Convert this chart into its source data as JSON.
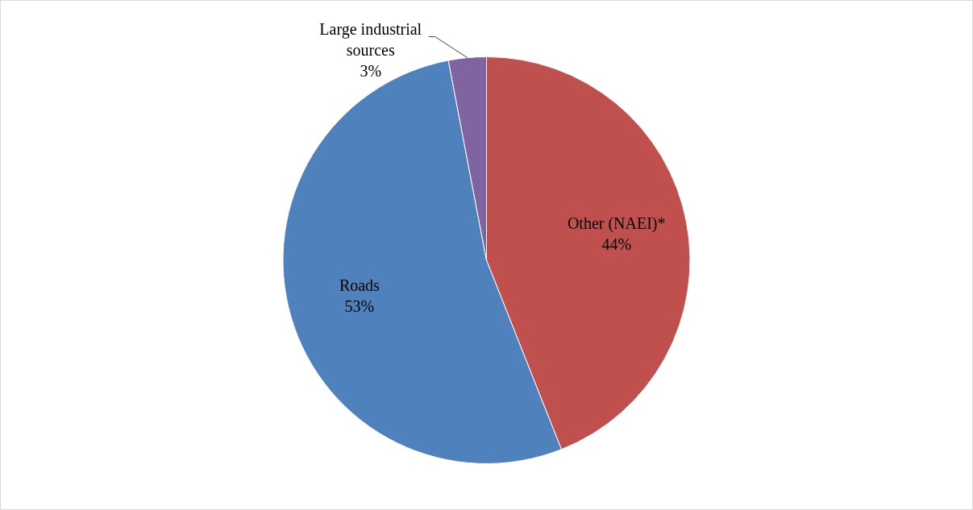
{
  "chart_data": {
    "type": "pie",
    "categories": [
      "Other (NAEI)*",
      "Roads",
      "Large industrial sources"
    ],
    "values": [
      44,
      53,
      3
    ],
    "value_labels": [
      "44%",
      "53%",
      "3%"
    ],
    "colors": [
      "#c0504d",
      "#4f81bd",
      "#8064a2"
    ],
    "legend": false
  }
}
